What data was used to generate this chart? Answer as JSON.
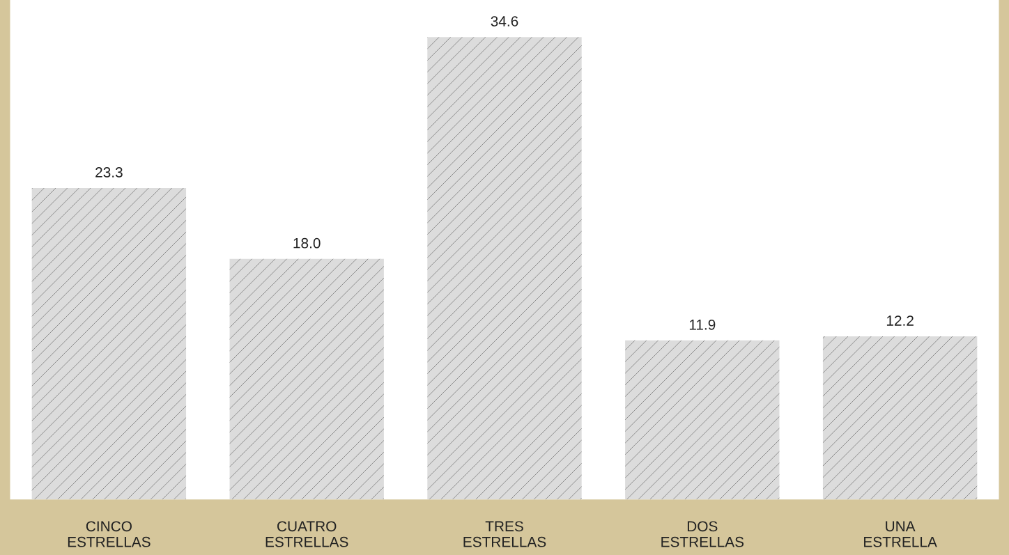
{
  "chart_data": {
    "type": "bar",
    "categories": [
      "CINCO\nESTRELLAS",
      "CUATRO\nESTRELLAS",
      "TRES\nESTRELLAS",
      "DOS\nESTRELLAS",
      "UNA\nESTRELLA"
    ],
    "values": [
      23.3,
      18.0,
      34.6,
      11.9,
      12.2
    ],
    "value_labels": [
      "23.3",
      "18.0",
      "34.6",
      "11.9",
      "12.2"
    ],
    "color": "#dcdcdc",
    "tick_labels": "x",
    "grid": false,
    "legend": false
  }
}
